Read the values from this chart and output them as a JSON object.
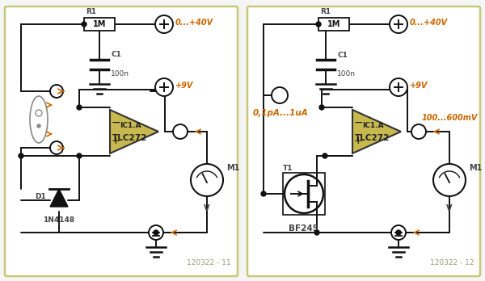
{
  "background": "#f5f5f5",
  "border_color": "#c8c878",
  "panel_bg": "#ffffff",
  "opamp_fill": "#c8b850",
  "opamp_edge": "#333333",
  "wire_color": "#111111",
  "comp_color": "#111111",
  "label_color": "#444444",
  "orange_color": "#cc6600",
  "diag_color": "#999977",
  "left_title": "120322 - 11",
  "right_title": "120322 - 12",
  "range_label": "0,1pA...1uA",
  "out_label": "100...600mV"
}
